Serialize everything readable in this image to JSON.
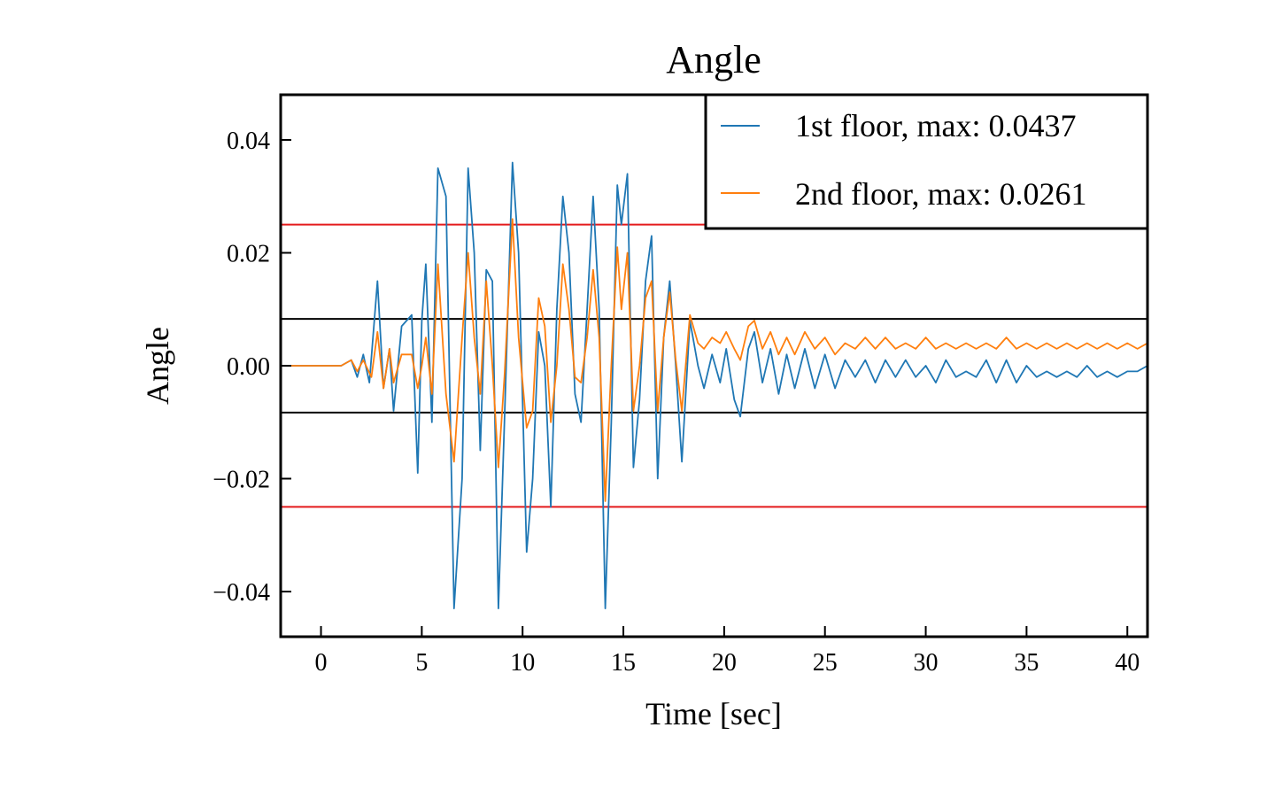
{
  "chart_data": {
    "type": "line",
    "title": "Angle",
    "xlabel": "Time [sec]",
    "ylabel": "Angle",
    "xlim": [
      -2,
      41
    ],
    "ylim": [
      -0.048,
      0.048
    ],
    "xticks": [
      0,
      5,
      10,
      15,
      20,
      25,
      30,
      35,
      40
    ],
    "xtick_labels": [
      "0",
      "5",
      "10",
      "15",
      "20",
      "25",
      "30",
      "35",
      "40"
    ],
    "yticks": [
      -0.04,
      -0.02,
      0.0,
      0.02,
      0.04
    ],
    "ytick_labels": [
      "−0.04",
      "−0.02",
      "0.00",
      "0.02",
      "0.04"
    ],
    "grid": false,
    "legend_position": "top-right",
    "reference_lines": [
      {
        "y": 0.025,
        "color": "#e41a1c"
      },
      {
        "y": -0.025,
        "color": "#e41a1c"
      },
      {
        "y": 0.0083,
        "color": "#000000"
      },
      {
        "y": -0.0083,
        "color": "#000000"
      }
    ],
    "series": [
      {
        "name": "1st floor, max: 0.0437",
        "color": "#1f77b4",
        "points": [
          [
            -2,
            0
          ],
          [
            1.0,
            0
          ],
          [
            1.5,
            0.001
          ],
          [
            1.8,
            -0.002
          ],
          [
            2.1,
            0.002
          ],
          [
            2.4,
            -0.003
          ],
          [
            2.8,
            0.015
          ],
          [
            3.1,
            -0.004
          ],
          [
            3.4,
            0.003
          ],
          [
            3.6,
            -0.008
          ],
          [
            4.0,
            0.007
          ],
          [
            4.5,
            0.009
          ],
          [
            4.8,
            -0.019
          ],
          [
            5.0,
            0.008
          ],
          [
            5.2,
            0.018
          ],
          [
            5.5,
            -0.01
          ],
          [
            5.8,
            0.035
          ],
          [
            6.2,
            0.03
          ],
          [
            6.6,
            -0.043
          ],
          [
            7.0,
            -0.02
          ],
          [
            7.3,
            0.035
          ],
          [
            7.6,
            0.02
          ],
          [
            7.9,
            -0.015
          ],
          [
            8.2,
            0.017
          ],
          [
            8.5,
            0.015
          ],
          [
            8.8,
            -0.043
          ],
          [
            9.1,
            -0.01
          ],
          [
            9.5,
            0.036
          ],
          [
            9.8,
            0.02
          ],
          [
            10.2,
            -0.033
          ],
          [
            10.5,
            -0.02
          ],
          [
            10.8,
            0.006
          ],
          [
            11.1,
            0.0
          ],
          [
            11.4,
            -0.025
          ],
          [
            11.7,
            0.01
          ],
          [
            12.0,
            0.03
          ],
          [
            12.3,
            0.02
          ],
          [
            12.6,
            -0.005
          ],
          [
            12.9,
            -0.01
          ],
          [
            13.2,
            0.01
          ],
          [
            13.5,
            0.03
          ],
          [
            13.8,
            0.01
          ],
          [
            14.1,
            -0.043
          ],
          [
            14.4,
            -0.01
          ],
          [
            14.7,
            0.032
          ],
          [
            14.9,
            0.025
          ],
          [
            15.2,
            0.034
          ],
          [
            15.5,
            -0.018
          ],
          [
            15.8,
            -0.006
          ],
          [
            16.1,
            0.015
          ],
          [
            16.4,
            0.023
          ],
          [
            16.7,
            -0.02
          ],
          [
            17.0,
            0.005
          ],
          [
            17.3,
            0.015
          ],
          [
            17.6,
            0.0
          ],
          [
            17.9,
            -0.017
          ],
          [
            18.3,
            0.008
          ],
          [
            18.7,
            0.0
          ],
          [
            19.0,
            -0.004
          ],
          [
            19.4,
            0.002
          ],
          [
            19.8,
            -0.003
          ],
          [
            20.1,
            0.003
          ],
          [
            20.5,
            -0.006
          ],
          [
            20.8,
            -0.009
          ],
          [
            21.2,
            0.003
          ],
          [
            21.5,
            0.006
          ],
          [
            21.9,
            -0.003
          ],
          [
            22.3,
            0.003
          ],
          [
            22.7,
            -0.005
          ],
          [
            23.1,
            0.002
          ],
          [
            23.5,
            -0.004
          ],
          [
            24.0,
            0.003
          ],
          [
            24.5,
            -0.004
          ],
          [
            25.0,
            0.002
          ],
          [
            25.5,
            -0.004
          ],
          [
            26.0,
            0.001
          ],
          [
            26.5,
            -0.002
          ],
          [
            27.0,
            0.001
          ],
          [
            27.5,
            -0.003
          ],
          [
            28.0,
            0.001
          ],
          [
            28.5,
            -0.002
          ],
          [
            29.0,
            0.001
          ],
          [
            29.5,
            -0.002
          ],
          [
            30.0,
            0.0
          ],
          [
            30.5,
            -0.003
          ],
          [
            31.0,
            0.001
          ],
          [
            31.5,
            -0.002
          ],
          [
            32.0,
            -0.001
          ],
          [
            32.5,
            -0.002
          ],
          [
            33.0,
            0.001
          ],
          [
            33.5,
            -0.003
          ],
          [
            34.0,
            0.001
          ],
          [
            34.5,
            -0.003
          ],
          [
            35.0,
            0.0
          ],
          [
            35.5,
            -0.002
          ],
          [
            36.0,
            -0.001
          ],
          [
            36.5,
            -0.002
          ],
          [
            37.0,
            -0.001
          ],
          [
            37.5,
            -0.002
          ],
          [
            38.0,
            0.0
          ],
          [
            38.5,
            -0.002
          ],
          [
            39.0,
            -0.001
          ],
          [
            39.5,
            -0.002
          ],
          [
            40.0,
            -0.001
          ],
          [
            40.5,
            -0.001
          ],
          [
            41.0,
            0.0
          ]
        ]
      },
      {
        "name": "2nd floor, max: 0.0261",
        "color": "#ff7f0e",
        "points": [
          [
            -2,
            0
          ],
          [
            1.0,
            0
          ],
          [
            1.5,
            0.001
          ],
          [
            1.8,
            -0.001
          ],
          [
            2.1,
            0.001
          ],
          [
            2.5,
            -0.002
          ],
          [
            2.8,
            0.006
          ],
          [
            3.1,
            -0.004
          ],
          [
            3.4,
            0.003
          ],
          [
            3.6,
            -0.003
          ],
          [
            4.0,
            0.002
          ],
          [
            4.5,
            0.002
          ],
          [
            4.8,
            -0.004
          ],
          [
            5.0,
            0.0
          ],
          [
            5.2,
            0.005
          ],
          [
            5.5,
            -0.005
          ],
          [
            5.8,
            0.018
          ],
          [
            6.2,
            -0.005
          ],
          [
            6.6,
            -0.017
          ],
          [
            7.0,
            0.005
          ],
          [
            7.3,
            0.02
          ],
          [
            7.6,
            0.005
          ],
          [
            7.9,
            -0.005
          ],
          [
            8.2,
            0.015
          ],
          [
            8.5,
            0.0
          ],
          [
            8.8,
            -0.018
          ],
          [
            9.1,
            -0.002
          ],
          [
            9.5,
            0.026
          ],
          [
            9.8,
            0.005
          ],
          [
            10.2,
            -0.011
          ],
          [
            10.5,
            -0.008
          ],
          [
            10.8,
            0.012
          ],
          [
            11.1,
            0.007
          ],
          [
            11.4,
            -0.01
          ],
          [
            11.7,
            0.0
          ],
          [
            12.0,
            0.018
          ],
          [
            12.3,
            0.01
          ],
          [
            12.6,
            -0.002
          ],
          [
            12.9,
            -0.003
          ],
          [
            13.2,
            0.005
          ],
          [
            13.5,
            0.017
          ],
          [
            13.8,
            0.005
          ],
          [
            14.1,
            -0.024
          ],
          [
            14.4,
            0.0
          ],
          [
            14.7,
            0.021
          ],
          [
            14.9,
            0.01
          ],
          [
            15.2,
            0.02
          ],
          [
            15.5,
            -0.008
          ],
          [
            15.8,
            0.0
          ],
          [
            16.1,
            0.012
          ],
          [
            16.4,
            0.015
          ],
          [
            16.7,
            -0.008
          ],
          [
            17.0,
            0.005
          ],
          [
            17.3,
            0.013
          ],
          [
            17.6,
            0.001
          ],
          [
            17.9,
            -0.008
          ],
          [
            18.3,
            0.009
          ],
          [
            18.7,
            0.004
          ],
          [
            19.0,
            0.003
          ],
          [
            19.4,
            0.005
          ],
          [
            19.8,
            0.004
          ],
          [
            20.1,
            0.006
          ],
          [
            20.5,
            0.003
          ],
          [
            20.8,
            0.001
          ],
          [
            21.2,
            0.007
          ],
          [
            21.5,
            0.008
          ],
          [
            21.9,
            0.003
          ],
          [
            22.3,
            0.006
          ],
          [
            22.7,
            0.002
          ],
          [
            23.1,
            0.005
          ],
          [
            23.5,
            0.002
          ],
          [
            24.0,
            0.006
          ],
          [
            24.5,
            0.003
          ],
          [
            25.0,
            0.005
          ],
          [
            25.5,
            0.002
          ],
          [
            26.0,
            0.004
          ],
          [
            26.5,
            0.003
          ],
          [
            27.0,
            0.005
          ],
          [
            27.5,
            0.003
          ],
          [
            28.0,
            0.005
          ],
          [
            28.5,
            0.003
          ],
          [
            29.0,
            0.004
          ],
          [
            29.5,
            0.003
          ],
          [
            30.0,
            0.005
          ],
          [
            30.5,
            0.003
          ],
          [
            31.0,
            0.004
          ],
          [
            31.5,
            0.003
          ],
          [
            32.0,
            0.004
          ],
          [
            32.5,
            0.003
          ],
          [
            33.0,
            0.004
          ],
          [
            33.5,
            0.003
          ],
          [
            34.0,
            0.005
          ],
          [
            34.5,
            0.003
          ],
          [
            35.0,
            0.004
          ],
          [
            35.5,
            0.003
          ],
          [
            36.0,
            0.004
          ],
          [
            36.5,
            0.003
          ],
          [
            37.0,
            0.004
          ],
          [
            37.5,
            0.003
          ],
          [
            38.0,
            0.004
          ],
          [
            38.5,
            0.003
          ],
          [
            39.0,
            0.004
          ],
          [
            39.5,
            0.003
          ],
          [
            40.0,
            0.004
          ],
          [
            40.5,
            0.003
          ],
          [
            41.0,
            0.004
          ]
        ]
      }
    ]
  }
}
